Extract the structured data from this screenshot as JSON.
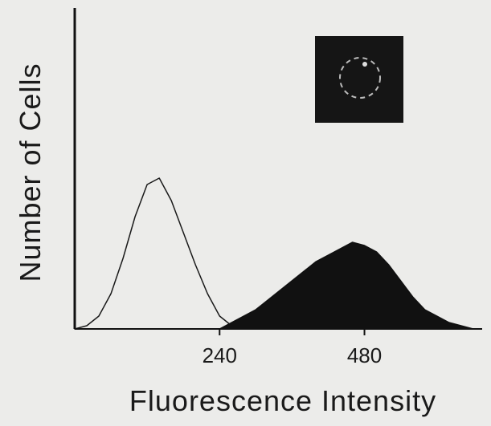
{
  "chart_data": {
    "type": "area",
    "x_label": "Fluorescence Intensity",
    "y_label": "Number of Cells",
    "x": [
      0,
      20,
      40,
      60,
      80,
      100,
      120,
      140,
      160,
      180,
      200,
      220,
      240,
      260,
      280,
      300,
      320,
      340,
      360,
      380,
      400,
      420,
      440,
      460,
      480,
      500,
      520,
      540,
      560,
      580,
      600,
      620,
      640,
      660
    ],
    "series": [
      {
        "color": "#1a1a1a",
        "filled": false,
        "values": [
          0,
          1,
          4,
          11,
          22,
          35,
          45,
          47,
          40,
          30,
          20,
          11,
          4,
          1,
          0,
          0,
          0,
          0,
          0,
          0,
          0,
          0,
          0,
          0,
          0,
          0,
          0,
          0,
          0,
          0,
          0,
          0,
          0,
          0
        ]
      },
      {
        "color": "#111111",
        "filled": true,
        "values": [
          0,
          0,
          0,
          0,
          0,
          0,
          0,
          0,
          0,
          0,
          0,
          0,
          0,
          2,
          4,
          6,
          9,
          12,
          15,
          18,
          21,
          23,
          25,
          27,
          26,
          24,
          20,
          15,
          10,
          6,
          4,
          2,
          1,
          0
        ]
      }
    ],
    "xlim": [
      0,
      675
    ],
    "ylim": [
      0,
      100
    ],
    "xticks": [
      240,
      480
    ]
  }
}
